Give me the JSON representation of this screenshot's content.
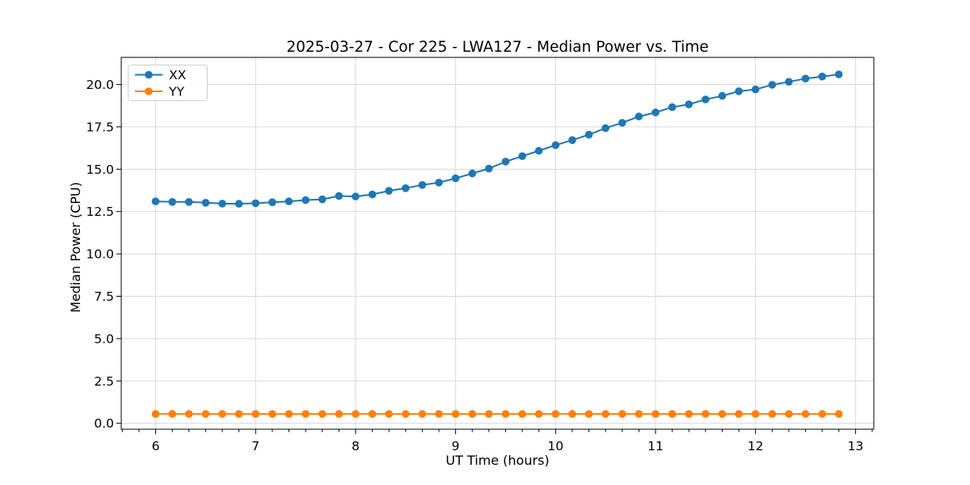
{
  "chart_data": {
    "type": "line",
    "title": "2025-03-27 - Cor 225 - LWA127 - Median Power vs. Time",
    "xlabel": "UT Time (hours)",
    "ylabel": "Median Power (CPU)",
    "xlim": [
      5.656,
      13.183
    ],
    "ylim": [
      -0.35,
      21.6
    ],
    "x_ticks": [
      6,
      7,
      8,
      9,
      10,
      11,
      12,
      13
    ],
    "x_tick_labels": [
      "6",
      "7",
      "8",
      "9",
      "10",
      "11",
      "12",
      "13"
    ],
    "x_minor_tick_step": 0.16667,
    "y_ticks": [
      0,
      2.5,
      5,
      7.5,
      10,
      12.5,
      15,
      17.5,
      20
    ],
    "y_tick_labels": [
      "0.0",
      "2.5",
      "5.0",
      "7.5",
      "10.0",
      "12.5",
      "15.0",
      "17.5",
      "20.0"
    ],
    "grid": true,
    "legend_position": "upper left",
    "colors": {
      "xx": "#1f77b4",
      "yy": "#ff7f0e",
      "grid": "#d9d9d9",
      "axis": "#000000",
      "legend_border": "#cccccc"
    },
    "x": [
      6.0,
      6.167,
      6.333,
      6.5,
      6.667,
      6.833,
      7.0,
      7.167,
      7.333,
      7.5,
      7.667,
      7.833,
      8.0,
      8.167,
      8.333,
      8.5,
      8.667,
      8.833,
      9.0,
      9.167,
      9.333,
      9.5,
      9.667,
      9.833,
      10.0,
      10.167,
      10.333,
      10.5,
      10.667,
      10.833,
      11.0,
      11.167,
      11.333,
      11.5,
      11.667,
      11.833,
      12.0,
      12.167,
      12.333,
      12.5,
      12.667,
      12.833
    ],
    "series": [
      {
        "name": "XX",
        "color": "#1f77b4",
        "values": [
          13.1,
          13.07,
          13.07,
          13.02,
          12.97,
          12.96,
          12.99,
          13.05,
          13.1,
          13.18,
          13.22,
          13.42,
          13.39,
          13.51,
          13.72,
          13.88,
          14.07,
          14.21,
          14.46,
          14.75,
          15.04,
          15.45,
          15.77,
          16.09,
          16.42,
          16.72,
          17.04,
          17.42,
          17.74,
          18.11,
          18.35,
          18.66,
          18.83,
          19.12,
          19.33,
          19.6,
          19.71,
          19.98,
          20.16,
          20.35,
          20.47,
          20.6
        ]
      },
      {
        "name": "YY",
        "color": "#ff7f0e",
        "values": [
          0.55,
          0.55,
          0.55,
          0.55,
          0.55,
          0.55,
          0.55,
          0.55,
          0.55,
          0.55,
          0.55,
          0.55,
          0.55,
          0.55,
          0.55,
          0.55,
          0.55,
          0.55,
          0.55,
          0.55,
          0.55,
          0.55,
          0.55,
          0.55,
          0.55,
          0.55,
          0.55,
          0.55,
          0.55,
          0.55,
          0.55,
          0.55,
          0.55,
          0.55,
          0.55,
          0.55,
          0.55,
          0.55,
          0.55,
          0.55,
          0.55,
          0.55
        ]
      }
    ]
  }
}
